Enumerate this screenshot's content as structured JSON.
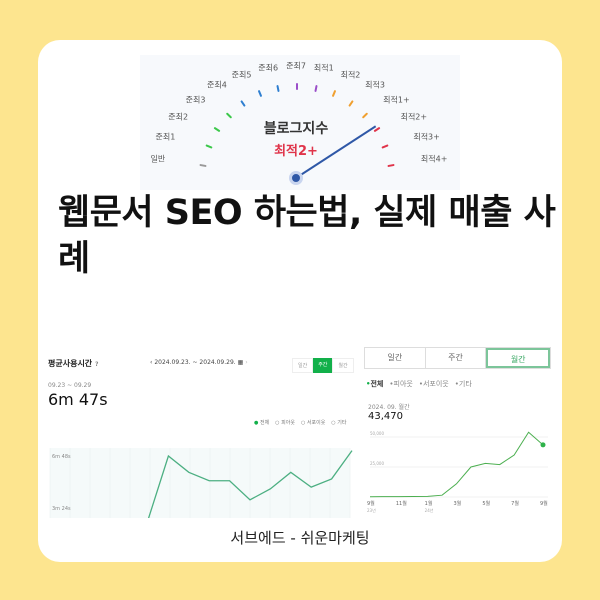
{
  "headline": "웹문서 SEO 하는법, 실제 매출 사례",
  "gauge": {
    "title": "블로그지수",
    "value": "최적2+",
    "labels": [
      {
        "text": "일반",
        "color": "#999999"
      },
      {
        "text": "준최1",
        "color": "#3cc84a"
      },
      {
        "text": "준최2",
        "color": "#3cc84a"
      },
      {
        "text": "준최3",
        "color": "#3cc84a"
      },
      {
        "text": "준최4",
        "color": "#2f7fd0"
      },
      {
        "text": "준최5",
        "color": "#2f7fd0"
      },
      {
        "text": "준최6",
        "color": "#2f7fd0"
      },
      {
        "text": "준최7",
        "color": "#9b4fc9"
      },
      {
        "text": "최적1",
        "color": "#9b4fc9"
      },
      {
        "text": "최적2",
        "color": "#f0a030"
      },
      {
        "text": "최적3",
        "color": "#f0a030"
      },
      {
        "text": "최적1+",
        "color": "#f0a030"
      },
      {
        "text": "최적2+",
        "color": "#e0344a"
      },
      {
        "text": "최적3+",
        "color": "#e0344a"
      },
      {
        "text": "최적4+",
        "color": "#e0344a"
      }
    ]
  },
  "left_panel": {
    "title": "평균사용시간",
    "help": "?",
    "date_range": "2024.09.23. ~ 2024.09.29.",
    "period_tabs": [
      "일간",
      "주간",
      "월간"
    ],
    "active_tab": 1,
    "sub_range": "09.23 ~ 09.29",
    "value": "6m 47s",
    "filters": [
      "전체",
      "피아웃",
      "서포이웃",
      "기타"
    ],
    "chart_data": {
      "type": "line",
      "yticks": [
        "6m 48s",
        "3m 24s"
      ],
      "ytick_values": [
        408,
        204
      ],
      "values": [
        157,
        408,
        344,
        311,
        311,
        236,
        279,
        344,
        286,
        318,
        429
      ],
      "color": "#4caf82"
    }
  },
  "right_panel": {
    "tabs": [
      "일간",
      "주간",
      "월간"
    ],
    "active_tab": 2,
    "filters": [
      "전체",
      "피아웃",
      "서포이웃",
      "기타"
    ],
    "period": "2024. 09. 월간",
    "value": "43,470",
    "chart_data": {
      "type": "line",
      "yticks": [
        "50,000",
        "25,000"
      ],
      "ytick_values": [
        50000,
        25000
      ],
      "ylim": [
        0,
        55000
      ],
      "categories": [
        "9월",
        "10월",
        "11월",
        "12월",
        "1월",
        "2월",
        "3월",
        "4월",
        "5월",
        "6월",
        "7월",
        "8월",
        "9월"
      ],
      "xtick_labels": [
        "9월",
        "11월",
        "1월",
        "3월",
        "5월",
        "7월",
        "9월"
      ],
      "year_labels": [
        "23년",
        "24년"
      ],
      "values": [
        200,
        300,
        300,
        400,
        500,
        1500,
        11000,
        25000,
        28000,
        27000,
        35000,
        54000,
        43470
      ],
      "color": "#4caf50"
    }
  },
  "caption": "서브에드 - 쉬운마케팅"
}
